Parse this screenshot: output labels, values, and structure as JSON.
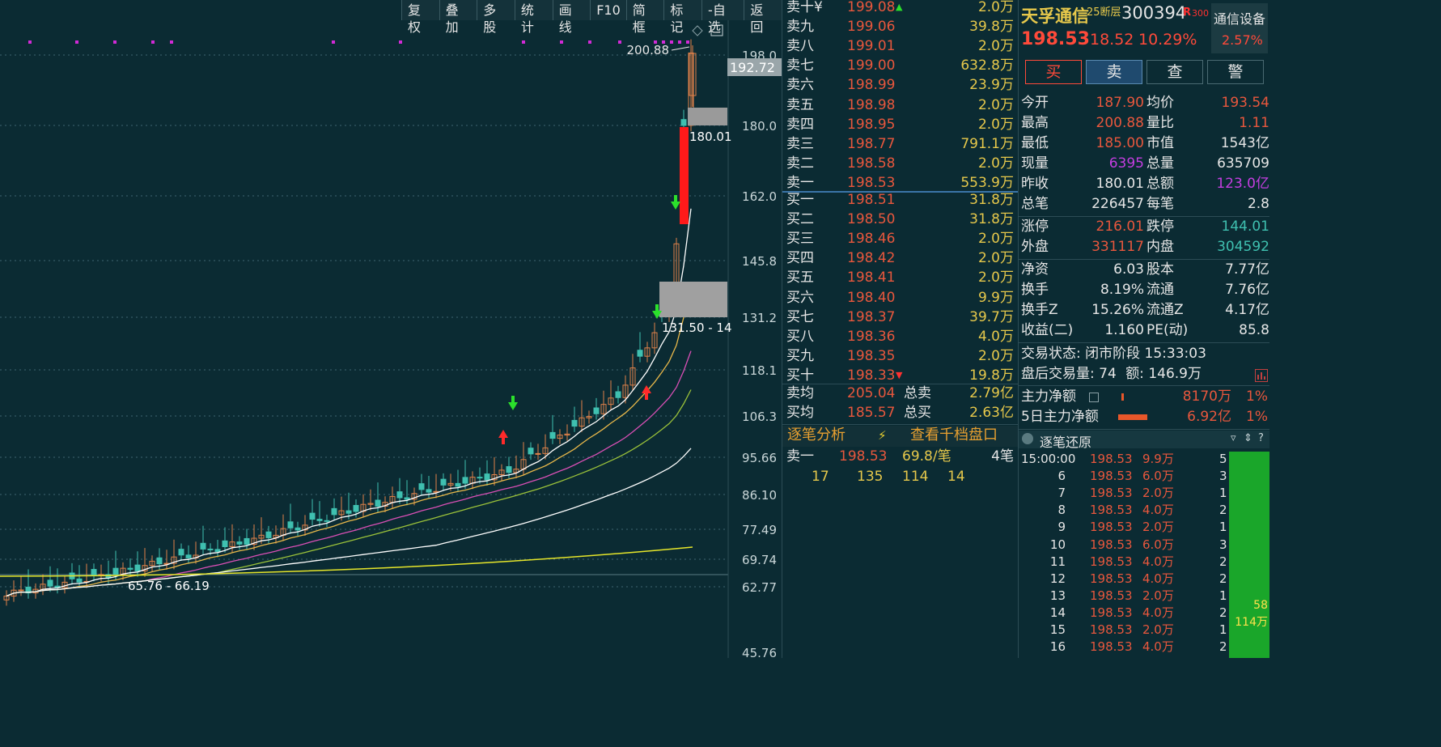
{
  "toolbar": [
    "复权",
    "叠加",
    "多股",
    "统计",
    "画线",
    "F10",
    "简框",
    "标记",
    "-自选",
    "返回"
  ],
  "chart": {
    "price_axis": [
      "198.0",
      "180.0",
      "162.0",
      "145.8",
      "131.2",
      "118.1",
      "106.3",
      "95.66",
      "86.10",
      "77.49",
      "69.74",
      "62.77",
      "45.76"
    ],
    "current_price_tag": "192.72",
    "high_label": "200.88",
    "prev_close_label": "180.01",
    "gap_label": "131.50 - 14",
    "low_range_label": "65.76 - 66.19"
  },
  "orderbook": {
    "asks": [
      {
        "label": "卖十¥",
        "price": "199.08",
        "vol": "2.0万",
        "arrow": "up"
      },
      {
        "label": "卖九",
        "price": "199.06",
        "vol": "39.8万"
      },
      {
        "label": "卖八",
        "price": "199.01",
        "vol": "2.0万"
      },
      {
        "label": "卖七",
        "price": "199.00",
        "vol": "632.8万"
      },
      {
        "label": "卖六",
        "price": "198.99",
        "vol": "23.9万"
      },
      {
        "label": "卖五",
        "price": "198.98",
        "vol": "2.0万"
      },
      {
        "label": "卖四",
        "price": "198.95",
        "vol": "2.0万"
      },
      {
        "label": "卖三",
        "price": "198.77",
        "vol": "791.1万"
      },
      {
        "label": "卖二",
        "price": "198.58",
        "vol": "2.0万"
      },
      {
        "label": "卖一",
        "price": "198.53",
        "vol": "553.9万"
      }
    ],
    "bids": [
      {
        "label": "买一",
        "price": "198.51",
        "vol": "31.8万"
      },
      {
        "label": "买二",
        "price": "198.50",
        "vol": "31.8万"
      },
      {
        "label": "买三",
        "price": "198.46",
        "vol": "2.0万"
      },
      {
        "label": "买四",
        "price": "198.42",
        "vol": "2.0万"
      },
      {
        "label": "买五",
        "price": "198.41",
        "vol": "2.0万"
      },
      {
        "label": "买六",
        "price": "198.40",
        "vol": "9.9万"
      },
      {
        "label": "买七",
        "price": "198.37",
        "vol": "39.7万"
      },
      {
        "label": "买八",
        "price": "198.36",
        "vol": "4.0万"
      },
      {
        "label": "买九",
        "price": "198.35",
        "vol": "2.0万"
      },
      {
        "label": "买十",
        "price": "198.33",
        "vol": "19.8万",
        "arrow": "down"
      }
    ],
    "avg_sell": {
      "label": "卖均",
      "price": "205.04",
      "tlabel": "总卖",
      "total": "2.79亿"
    },
    "avg_buy": {
      "label": "买均",
      "price": "185.57",
      "tlabel": "总买",
      "total": "2.63亿"
    },
    "tabs": {
      "left": "逐笔分析",
      "right": "查看千档盘口"
    },
    "first": {
      "label": "卖一",
      "price": "198.53",
      "per": "69.8/笔",
      "count": "4笔"
    },
    "queue": [
      "17",
      "135",
      "114",
      "14"
    ]
  },
  "stock": {
    "name": "天孚通信",
    "tag": "25断层",
    "code": "300394",
    "badge": "R",
    "badge_num": "300",
    "price": "198.53",
    "change": "18.52",
    "pct": "10.29%",
    "sector": "通信设备",
    "sector_pct": "2.57%",
    "buttons": [
      "买",
      "卖",
      "查",
      "警"
    ]
  },
  "quote": [
    [
      {
        "k": "今开",
        "v": "187.90",
        "c": "#e8573d"
      },
      {
        "k": "均价",
        "v": "193.54",
        "c": "#e8573d"
      }
    ],
    [
      {
        "k": "最高",
        "v": "200.88",
        "c": "#e8573d"
      },
      {
        "k": "量比",
        "v": "1.11",
        "c": "#e8573d"
      }
    ],
    [
      {
        "k": "最低",
        "v": "185.00",
        "c": "#e8573d"
      },
      {
        "k": "市值",
        "v": "1543亿",
        "c": "#e6e6e6"
      }
    ],
    [
      {
        "k": "现量",
        "v": "6395",
        "c": "#c43ee0"
      },
      {
        "k": "总量",
        "v": "635709",
        "c": "#e6e6e6"
      }
    ],
    [
      {
        "k": "昨收",
        "v": "180.01",
        "c": "#e6e6e6"
      },
      {
        "k": "总额",
        "v": "123.0亿",
        "c": "#c43ee0"
      }
    ],
    [
      {
        "k": "总笔",
        "v": "226457",
        "c": "#e6e6e6"
      },
      {
        "k": "每笔",
        "v": "2.8",
        "c": "#e6e6e6"
      }
    ],
    [
      {
        "k": "涨停",
        "v": "216.01",
        "c": "#e8573d"
      },
      {
        "k": "跌停",
        "v": "144.01",
        "c": "#3fc0b0"
      }
    ],
    [
      {
        "k": "外盘",
        "v": "331117",
        "c": "#e8573d"
      },
      {
        "k": "内盘",
        "v": "304592",
        "c": "#3fc0b0"
      }
    ],
    [
      {
        "k": "净资",
        "v": "6.03",
        "c": "#e6e6e6"
      },
      {
        "k": "股本",
        "v": "7.77亿",
        "c": "#e6e6e6"
      }
    ],
    [
      {
        "k": "换手",
        "v": "8.19%",
        "c": "#e6e6e6"
      },
      {
        "k": "流通",
        "v": "7.76亿",
        "c": "#e6e6e6"
      }
    ],
    [
      {
        "k": "换手Z",
        "v": "15.26%",
        "c": "#e6e6e6"
      },
      {
        "k": "流通Z",
        "v": "4.17亿",
        "c": "#e6e6e6"
      }
    ],
    [
      {
        "k": "收益(二)",
        "v": "1.160",
        "c": "#e6e6e6"
      },
      {
        "k": "PE(动)",
        "v": "85.8",
        "c": "#e6e6e6"
      }
    ]
  ],
  "status": {
    "label": "交易状态:",
    "value": "闭市阶段 15:33:03"
  },
  "after_hours": {
    "label": "盘后交易量:",
    "vol": "74",
    "amt_label": "额:",
    "amt": "146.9万"
  },
  "main_flow": [
    {
      "label": "主力净额",
      "value": "8170万",
      "pct": "1%"
    },
    {
      "label": "5日主力净额",
      "value": "6.92亿",
      "pct": "1%"
    }
  ],
  "ticks_header": "逐笔还原",
  "ticks": [
    {
      "t": "15:00:00",
      "p": "198.53",
      "v": "9.9万",
      "n": "5"
    },
    {
      "t": "6",
      "p": "198.53",
      "v": "6.0万",
      "n": "3"
    },
    {
      "t": "7",
      "p": "198.53",
      "v": "2.0万",
      "n": "1"
    },
    {
      "t": "8",
      "p": "198.53",
      "v": "4.0万",
      "n": "2"
    },
    {
      "t": "9",
      "p": "198.53",
      "v": "2.0万",
      "n": "1"
    },
    {
      "t": "10",
      "p": "198.53",
      "v": "6.0万",
      "n": "3"
    },
    {
      "t": "11",
      "p": "198.53",
      "v": "4.0万",
      "n": "2"
    },
    {
      "t": "12",
      "p": "198.53",
      "v": "4.0万",
      "n": "2"
    },
    {
      "t": "13",
      "p": "198.53",
      "v": "2.0万",
      "n": "1"
    },
    {
      "t": "14",
      "p": "198.53",
      "v": "4.0万",
      "n": "2"
    },
    {
      "t": "15",
      "p": "198.53",
      "v": "2.0万",
      "n": "1"
    },
    {
      "t": "16",
      "p": "198.53",
      "v": "4.0万",
      "n": "2"
    }
  ],
  "tick_bar": {
    "count": "58",
    "vol": "114万"
  }
}
